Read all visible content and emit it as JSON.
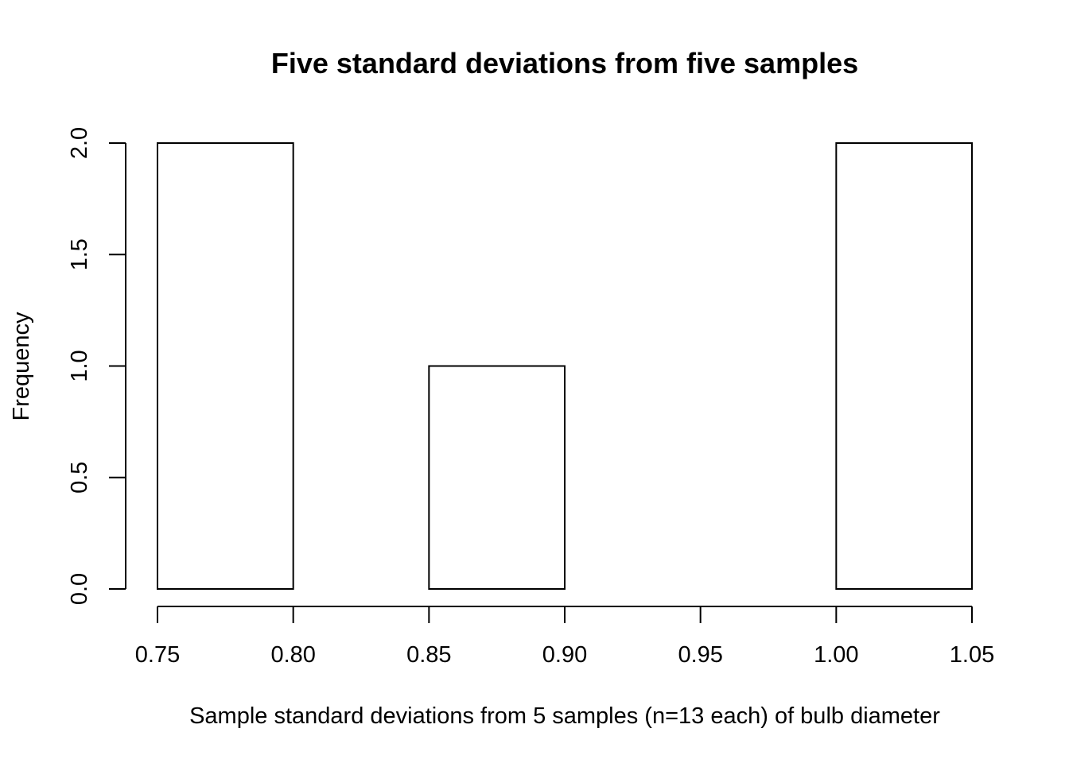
{
  "chart_data": {
    "type": "bar",
    "title": "Five standard deviations from five samples",
    "xlabel": "Sample standard deviations from 5 samples (n=13 each) of bulb diameter",
    "ylabel": "Frequency",
    "bins": [
      {
        "start": 0.75,
        "end": 0.8,
        "count": 2
      },
      {
        "start": 0.8,
        "end": 0.85,
        "count": 0
      },
      {
        "start": 0.85,
        "end": 0.9,
        "count": 1
      },
      {
        "start": 0.9,
        "end": 0.95,
        "count": 0
      },
      {
        "start": 0.95,
        "end": 1.0,
        "count": 0
      },
      {
        "start": 1.0,
        "end": 1.05,
        "count": 2
      }
    ],
    "xlim": [
      0.75,
      1.05
    ],
    "ylim": [
      0,
      2.0
    ],
    "x_ticks": [
      "0.75",
      "0.80",
      "0.85",
      "0.90",
      "0.95",
      "1.00",
      "1.05"
    ],
    "y_ticks": [
      "0.0",
      "0.5",
      "1.0",
      "1.5",
      "2.0"
    ],
    "grid": false,
    "colors": {
      "bar_fill": "#ffffff",
      "bar_stroke": "#000000",
      "axis": "#000000"
    }
  }
}
